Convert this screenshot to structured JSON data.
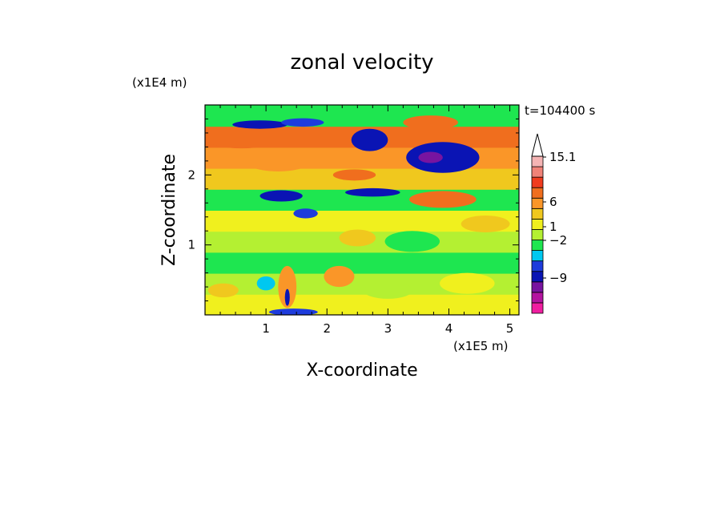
{
  "chart_data": {
    "type": "heatmap",
    "title": "zonal velocity",
    "xlabel": "X-coordinate",
    "ylabel": "Z-coordinate",
    "x_unit": "(x1E5 m)",
    "y_unit": "(x1E4 m)",
    "time_label": "t=104400 s",
    "xlim": [
      0,
      5.15
    ],
    "ylim": [
      0,
      3.0
    ],
    "x_ticks": [
      "1",
      "2",
      "3",
      "4",
      "5"
    ],
    "y_ticks": [
      "1",
      "2"
    ],
    "colorbar": {
      "levels": [
        {
          "color": "#f01ea0"
        },
        {
          "color": "#b414a0"
        },
        {
          "color": "#7814a0"
        },
        {
          "color": "#0a14b4"
        },
        {
          "color": "#1e3cdc"
        },
        {
          "color": "#00c8f0"
        },
        {
          "color": "#1ee650"
        },
        {
          "color": "#b4f032"
        },
        {
          "color": "#f0f01e"
        },
        {
          "color": "#f0c81e"
        },
        {
          "color": "#fa9628"
        },
        {
          "color": "#f06e1e"
        },
        {
          "color": "#f03c1e"
        },
        {
          "color": "#f08278"
        },
        {
          "color": "#f5b4b4"
        }
      ],
      "labels": [
        "15.1",
        "6",
        "1",
        "−2",
        "−9"
      ]
    },
    "field_bands": [
      {
        "z": 0.15,
        "level": 8
      },
      {
        "z": 0.45,
        "level": 7
      },
      {
        "z": 0.75,
        "level": 6
      },
      {
        "z": 1.05,
        "level": 7
      },
      {
        "z": 1.35,
        "level": 8
      },
      {
        "z": 1.65,
        "level": 6
      },
      {
        "z": 1.95,
        "level": 9
      },
      {
        "z": 2.25,
        "level": 10
      },
      {
        "z": 2.55,
        "level": 11
      },
      {
        "z": 2.85,
        "level": 6
      }
    ],
    "features": [
      {
        "x": 0.6,
        "z": 2.5,
        "rx": 0.55,
        "rz": 0.12,
        "level": 11
      },
      {
        "x": 1.2,
        "z": 2.15,
        "rx": 0.45,
        "rz": 0.1,
        "level": 10
      },
      {
        "x": 0.9,
        "z": 2.72,
        "rx": 0.45,
        "rz": 0.06,
        "level": 3
      },
      {
        "x": 1.6,
        "z": 2.75,
        "rx": 0.35,
        "rz": 0.06,
        "level": 4
      },
      {
        "x": 1.25,
        "z": 1.7,
        "rx": 0.35,
        "rz": 0.08,
        "level": 3
      },
      {
        "x": 1.65,
        "z": 1.45,
        "rx": 0.2,
        "rz": 0.07,
        "level": 4
      },
      {
        "x": 2.7,
        "z": 2.5,
        "rx": 0.3,
        "rz": 0.16,
        "level": 3
      },
      {
        "x": 2.45,
        "z": 2.0,
        "rx": 0.35,
        "rz": 0.08,
        "level": 11
      },
      {
        "x": 2.75,
        "z": 1.75,
        "rx": 0.45,
        "rz": 0.06,
        "level": 3
      },
      {
        "x": 3.9,
        "z": 2.25,
        "rx": 0.6,
        "rz": 0.22,
        "level": 3
      },
      {
        "x": 3.7,
        "z": 2.25,
        "rx": 0.2,
        "rz": 0.08,
        "level": 2
      },
      {
        "x": 3.7,
        "z": 2.75,
        "rx": 0.45,
        "rz": 0.1,
        "level": 11
      },
      {
        "x": 3.9,
        "z": 1.65,
        "rx": 0.55,
        "rz": 0.12,
        "level": 11
      },
      {
        "x": 4.6,
        "z": 1.3,
        "rx": 0.4,
        "rz": 0.12,
        "level": 9
      },
      {
        "x": 0.3,
        "z": 0.35,
        "rx": 0.25,
        "rz": 0.1,
        "level": 9
      },
      {
        "x": 2.2,
        "z": 0.55,
        "rx": 0.25,
        "rz": 0.15,
        "level": 10
      },
      {
        "x": 1.0,
        "z": 0.45,
        "rx": 0.15,
        "rz": 0.1,
        "level": 5
      },
      {
        "x": 1.35,
        "z": 0.4,
        "rx": 0.15,
        "rz": 0.3,
        "level": 10
      },
      {
        "x": 1.35,
        "z": 0.25,
        "rx": 0.04,
        "rz": 0.12,
        "level": 3
      },
      {
        "x": 1.45,
        "z": 0.04,
        "rx": 0.4,
        "rz": 0.05,
        "level": 4
      },
      {
        "x": 3.0,
        "z": 0.35,
        "rx": 0.4,
        "rz": 0.12,
        "level": 7
      },
      {
        "x": 4.3,
        "z": 0.45,
        "rx": 0.45,
        "rz": 0.15,
        "level": 8
      },
      {
        "x": 3.4,
        "z": 1.05,
        "rx": 0.45,
        "rz": 0.15,
        "level": 6
      },
      {
        "x": 2.5,
        "z": 1.1,
        "rx": 0.3,
        "rz": 0.12,
        "level": 9
      }
    ]
  }
}
